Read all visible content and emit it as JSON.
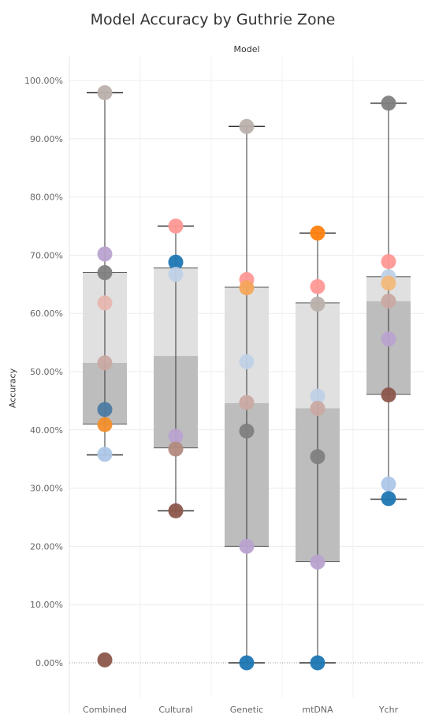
{
  "chart_data": {
    "type": "box",
    "title": "Model Accuracy by Guthrie Zone",
    "column_header": "Model",
    "ylabel": "Accuracy",
    "ylim": [
      -6,
      105
    ],
    "yticks": [
      0,
      10,
      20,
      30,
      40,
      50,
      60,
      70,
      80,
      90,
      100
    ],
    "ytick_labels": [
      "0.00%",
      "10.00%",
      "20.00%",
      "30.00%",
      "40.00%",
      "50.00%",
      "60.00%",
      "70.00%",
      "80.00%",
      "90.00%",
      "100.00%"
    ],
    "grid": true,
    "categories": [
      "Combined",
      "Cultural",
      "Genetic",
      "mtDNA",
      "Ychr"
    ],
    "boxes": [
      {
        "category": "Combined",
        "whisker_low": 35.7,
        "q1": 41.0,
        "median": 51.5,
        "q3": 67.0,
        "whisker_high": 97.9
      },
      {
        "category": "Cultural",
        "whisker_low": 26.1,
        "q1": 36.9,
        "median": 52.7,
        "q3": 67.8,
        "whisker_high": 75.0
      },
      {
        "category": "Genetic",
        "whisker_low": 0.0,
        "q1": 20.0,
        "median": 44.6,
        "q3": 64.5,
        "whisker_high": 92.1
      },
      {
        "category": "mtDNA",
        "whisker_low": 0.0,
        "q1": 17.4,
        "median": 43.7,
        "q3": 61.8,
        "whisker_high": 73.8
      },
      {
        "category": "Ychr",
        "whisker_low": 28.1,
        "q1": 46.1,
        "median": 62.1,
        "q3": 66.3,
        "whisker_high": 96.1
      }
    ],
    "points": [
      {
        "category": "Combined",
        "value": 97.9,
        "color": "#bab0ac"
      },
      {
        "category": "Combined",
        "value": 70.2,
        "color": "#b9a3cf"
      },
      {
        "category": "Combined",
        "value": 67.0,
        "color": "#7f7f7f"
      },
      {
        "category": "Combined",
        "value": 61.8,
        "color": "#e6b6b0"
      },
      {
        "category": "Combined",
        "value": 51.5,
        "color": "#c9a9a2"
      },
      {
        "category": "Combined",
        "value": 43.5,
        "color": "#4e7ba3"
      },
      {
        "category": "Combined",
        "value": 40.9,
        "color": "#f28e2b"
      },
      {
        "category": "Combined",
        "value": 35.8,
        "color": "#aec7e8"
      },
      {
        "category": "Combined",
        "value": 0.5,
        "color": "#8c564b"
      },
      {
        "category": "Cultural",
        "value": 75.0,
        "color": "#ff9896"
      },
      {
        "category": "Cultural",
        "value": 68.8,
        "color": "#1f77b4"
      },
      {
        "category": "Cultural",
        "value": 66.7,
        "color": "#c0d1e6"
      },
      {
        "category": "Cultural",
        "value": 38.9,
        "color": "#b9a3cf"
      },
      {
        "category": "Cultural",
        "value": 36.7,
        "color": "#b38a80"
      },
      {
        "category": "Cultural",
        "value": 26.1,
        "color": "#8c564b"
      },
      {
        "category": "Genetic",
        "value": 92.1,
        "color": "#bab0ac"
      },
      {
        "category": "Genetic",
        "value": 65.8,
        "color": "#ff9896"
      },
      {
        "category": "Genetic",
        "value": 64.4,
        "color": "#f5a55a"
      },
      {
        "category": "Genetic",
        "value": 51.7,
        "color": "#c0d1e6"
      },
      {
        "category": "Genetic",
        "value": 44.7,
        "color": "#c9a9a2"
      },
      {
        "category": "Genetic",
        "value": 39.8,
        "color": "#7f7f7f"
      },
      {
        "category": "Genetic",
        "value": 20.0,
        "color": "#b9a3cf"
      },
      {
        "category": "Genetic",
        "value": 0.0,
        "color": "#1f77b4"
      },
      {
        "category": "mtDNA",
        "value": 73.8,
        "color": "#ff7f0e"
      },
      {
        "category": "mtDNA",
        "value": 64.6,
        "color": "#ff9896"
      },
      {
        "category": "mtDNA",
        "value": 61.6,
        "color": "#bab0ac"
      },
      {
        "category": "mtDNA",
        "value": 45.8,
        "color": "#c0d1e6"
      },
      {
        "category": "mtDNA",
        "value": 43.7,
        "color": "#c9a9a2"
      },
      {
        "category": "mtDNA",
        "value": 35.4,
        "color": "#7f7f7f"
      },
      {
        "category": "mtDNA",
        "value": 17.3,
        "color": "#b9a3cf"
      },
      {
        "category": "mtDNA",
        "value": 0.0,
        "color": "#1f77b4"
      },
      {
        "category": "Ychr",
        "value": 96.1,
        "color": "#7f7f7f"
      },
      {
        "category": "Ychr",
        "value": 68.9,
        "color": "#ff9896"
      },
      {
        "category": "Ychr",
        "value": 66.3,
        "color": "#c0d1e6"
      },
      {
        "category": "Ychr",
        "value": 65.2,
        "color": "#f2b87a"
      },
      {
        "category": "Ychr",
        "value": 62.1,
        "color": "#c9a9a2"
      },
      {
        "category": "Ychr",
        "value": 55.6,
        "color": "#b9a3cf"
      },
      {
        "category": "Ychr",
        "value": 46.0,
        "color": "#8c564b"
      },
      {
        "category": "Ychr",
        "value": 30.7,
        "color": "#aec7e8"
      },
      {
        "category": "Ychr",
        "value": 28.2,
        "color": "#1f77b4"
      }
    ],
    "colors": {
      "box_upper": "#e0e0e0",
      "box_lower": "#bdbdbd",
      "whisker": "#333333",
      "grid": "#ececec",
      "zero_line": "#9a9a9a"
    }
  }
}
